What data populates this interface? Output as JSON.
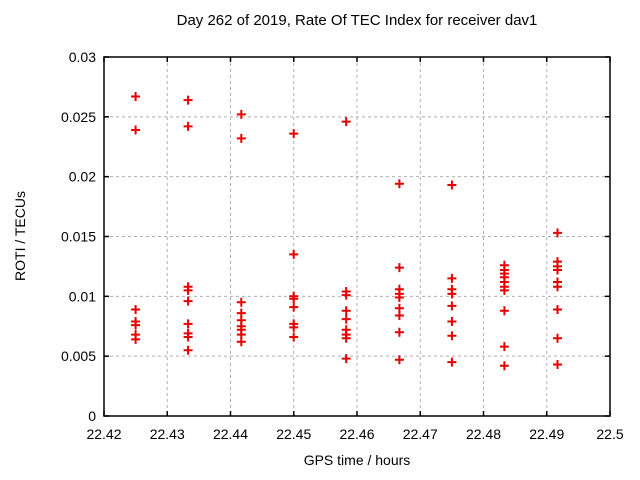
{
  "page": {
    "background_color": "#ffffff"
  },
  "chart_data": {
    "type": "scatter",
    "title": "Day 262 of 2019, Rate Of TEC Index for receiver dav1",
    "xlabel": "GPS time / hours",
    "ylabel": "ROTI / TECUs",
    "xlim": [
      22.42,
      22.5
    ],
    "ylim": [
      0,
      0.03
    ],
    "x_ticks": [
      22.42,
      22.43,
      22.44,
      22.45,
      22.46,
      22.47,
      22.48,
      22.49,
      22.5
    ],
    "x_tick_labels": [
      "22.42",
      "22.43",
      "22.44",
      "22.45",
      "22.46",
      "22.47",
      "22.48",
      "22.49",
      "22.5"
    ],
    "y_ticks": [
      0,
      0.005,
      0.01,
      0.015,
      0.02,
      0.025,
      0.03
    ],
    "y_tick_labels": [
      "0",
      "0.005",
      "0.01",
      "0.015",
      "0.02",
      "0.025",
      "0.03"
    ],
    "grid": true,
    "grid_color": "#b0b0b0",
    "legend": "none",
    "marker": {
      "shape": "plus",
      "color": "#e60000",
      "size": 9
    },
    "series": [
      {
        "name": "ROTI",
        "points": [
          [
            22.425,
            0.0267
          ],
          [
            22.425,
            0.0239
          ],
          [
            22.425,
            0.0089
          ],
          [
            22.425,
            0.0079
          ],
          [
            22.425,
            0.0076
          ],
          [
            22.425,
            0.0068
          ],
          [
            22.425,
            0.0064
          ],
          [
            22.4333,
            0.0264
          ],
          [
            22.4333,
            0.0242
          ],
          [
            22.4333,
            0.0108
          ],
          [
            22.4333,
            0.0105
          ],
          [
            22.4333,
            0.0096
          ],
          [
            22.4333,
            0.0077
          ],
          [
            22.4333,
            0.0069
          ],
          [
            22.4333,
            0.0066
          ],
          [
            22.4333,
            0.0055
          ],
          [
            22.4417,
            0.0252
          ],
          [
            22.4417,
            0.0232
          ],
          [
            22.4417,
            0.0095
          ],
          [
            22.4417,
            0.0086
          ],
          [
            22.4417,
            0.008
          ],
          [
            22.4417,
            0.0075
          ],
          [
            22.4417,
            0.0072
          ],
          [
            22.4417,
            0.0068
          ],
          [
            22.4417,
            0.0062
          ],
          [
            22.45,
            0.0236
          ],
          [
            22.45,
            0.0135
          ],
          [
            22.45,
            0.01
          ],
          [
            22.45,
            0.0098
          ],
          [
            22.45,
            0.0091
          ],
          [
            22.45,
            0.0077
          ],
          [
            22.45,
            0.0074
          ],
          [
            22.45,
            0.0066
          ],
          [
            22.4583,
            0.0246
          ],
          [
            22.4583,
            0.0104
          ],
          [
            22.4583,
            0.0101
          ],
          [
            22.4583,
            0.0088
          ],
          [
            22.4583,
            0.0081
          ],
          [
            22.4583,
            0.0072
          ],
          [
            22.4583,
            0.0068
          ],
          [
            22.4583,
            0.0065
          ],
          [
            22.4583,
            0.0048
          ],
          [
            22.4667,
            0.0194
          ],
          [
            22.4667,
            0.0124
          ],
          [
            22.4667,
            0.0106
          ],
          [
            22.4667,
            0.0102
          ],
          [
            22.4667,
            0.0099
          ],
          [
            22.4667,
            0.009
          ],
          [
            22.4667,
            0.0084
          ],
          [
            22.4667,
            0.007
          ],
          [
            22.4667,
            0.0047
          ],
          [
            22.475,
            0.0193
          ],
          [
            22.475,
            0.0115
          ],
          [
            22.475,
            0.0106
          ],
          [
            22.475,
            0.0102
          ],
          [
            22.475,
            0.0092
          ],
          [
            22.475,
            0.0079
          ],
          [
            22.475,
            0.0067
          ],
          [
            22.475,
            0.0045
          ],
          [
            22.4833,
            0.0126
          ],
          [
            22.4833,
            0.0122
          ],
          [
            22.4833,
            0.0119
          ],
          [
            22.4833,
            0.0116
          ],
          [
            22.4833,
            0.0112
          ],
          [
            22.4833,
            0.0108
          ],
          [
            22.4833,
            0.0105
          ],
          [
            22.4833,
            0.0088
          ],
          [
            22.4833,
            0.0058
          ],
          [
            22.4833,
            0.0042
          ],
          [
            22.4917,
            0.0153
          ],
          [
            22.4917,
            0.0129
          ],
          [
            22.4917,
            0.0125
          ],
          [
            22.4917,
            0.0122
          ],
          [
            22.4917,
            0.0112
          ],
          [
            22.4917,
            0.0108
          ],
          [
            22.4917,
            0.0089
          ],
          [
            22.4917,
            0.0065
          ],
          [
            22.4917,
            0.0043
          ]
        ]
      }
    ]
  }
}
